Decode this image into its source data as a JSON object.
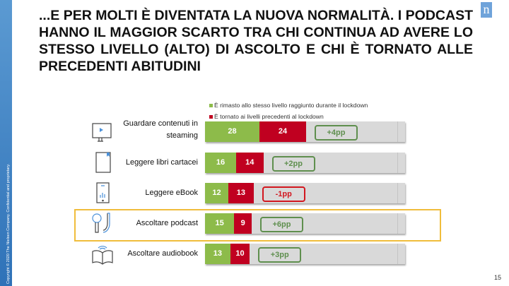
{
  "title": "...E PER MOLTI È DIVENTATA LA NUOVA NORMALITÀ. I PODCAST HANNO IL MAGGIOR SCARTO TRA CHI CONTINUA AD AVERE LO STESSO LIVELLO (ALTO) DI ASCOLTO E CHI È TORNATO ALLE PRECEDENTI ABITUDINI",
  "copyright": "Copyright © 2020 The Nielsen Company. Confidential and proprietary.",
  "logo_letter": "n",
  "page_number": "15",
  "colors": {
    "green": "#8dbb4a",
    "red": "#c00020",
    "grey": "#d9d9d9",
    "highlight": "#f0bd3c"
  },
  "chart_data": {
    "type": "bar",
    "stacked": true,
    "legend": [
      "È rimasto allo stesso livello raggiunto durante il lockdown",
      "È tornato ai livelli precedenti al lockdown"
    ],
    "legend_position": "top",
    "categories": [
      "Guardare contenuti in steaming",
      "Leggere libri cartacei",
      "Leggere eBook",
      "Ascoltare podcast",
      "Ascoltare audiobook"
    ],
    "icons": [
      "monitor-play-icon",
      "book-icon",
      "ebook-reader-icon",
      "podcast-microphone-icon",
      "audiobook-icon"
    ],
    "series": [
      {
        "name": "È rimasto allo stesso livello raggiunto durante il lockdown",
        "values": [
          28,
          16,
          12,
          15,
          13
        ]
      },
      {
        "name": "È tornato ai livelli precedenti al lockdown",
        "values": [
          24,
          14,
          13,
          9,
          10
        ]
      }
    ],
    "differences": [
      "+4pp",
      "+2pp",
      "-1pp",
      "+6pp",
      "+3pp"
    ],
    "highlighted": "Ascoltare podcast",
    "xlim": [
      0,
      100
    ]
  }
}
